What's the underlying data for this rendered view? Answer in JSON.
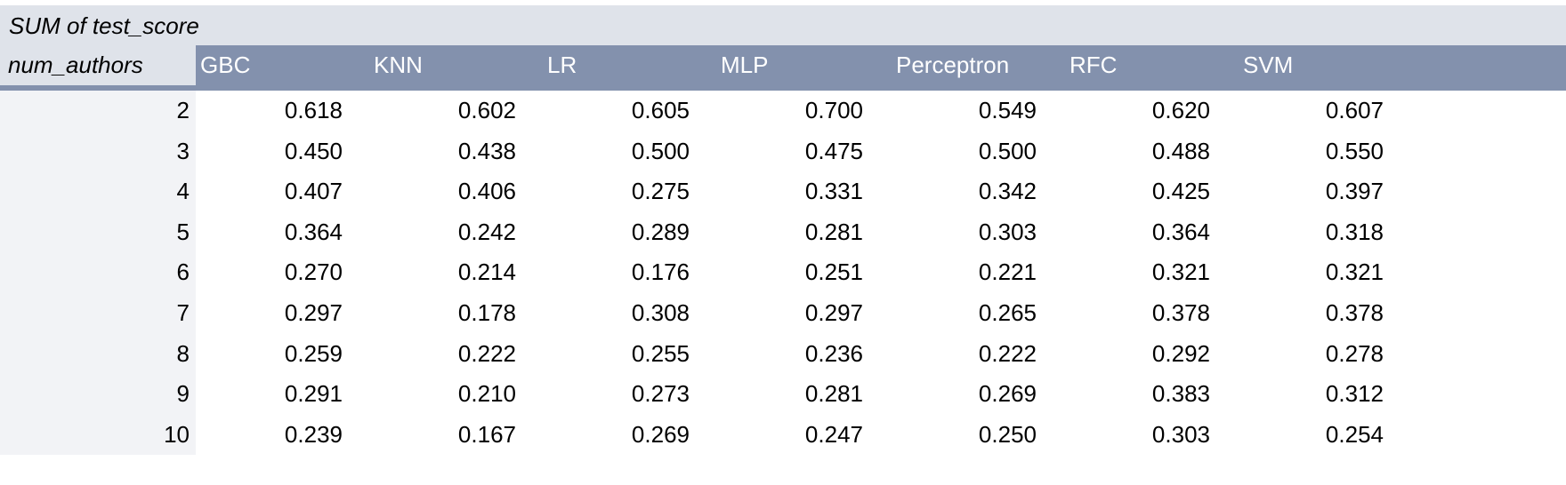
{
  "table": {
    "title": "SUM of test_score",
    "row_field": "num_authors",
    "columns": [
      "GBC",
      "KNN",
      "LR",
      "MLP",
      "Perceptron",
      "RFC",
      "SVM"
    ],
    "rows": [
      {
        "key": "2",
        "values": [
          "0.618",
          "0.602",
          "0.605",
          "0.700",
          "0.549",
          "0.620",
          "0.607"
        ]
      },
      {
        "key": "3",
        "values": [
          "0.450",
          "0.438",
          "0.500",
          "0.475",
          "0.500",
          "0.488",
          "0.550"
        ]
      },
      {
        "key": "4",
        "values": [
          "0.407",
          "0.406",
          "0.275",
          "0.331",
          "0.342",
          "0.425",
          "0.397"
        ]
      },
      {
        "key": "5",
        "values": [
          "0.364",
          "0.242",
          "0.289",
          "0.281",
          "0.303",
          "0.364",
          "0.318"
        ]
      },
      {
        "key": "6",
        "values": [
          "0.270",
          "0.214",
          "0.176",
          "0.251",
          "0.221",
          "0.321",
          "0.321"
        ]
      },
      {
        "key": "7",
        "values": [
          "0.297",
          "0.178",
          "0.308",
          "0.297",
          "0.265",
          "0.378",
          "0.378"
        ]
      },
      {
        "key": "8",
        "values": [
          "0.259",
          "0.222",
          "0.255",
          "0.236",
          "0.222",
          "0.292",
          "0.278"
        ]
      },
      {
        "key": "9",
        "values": [
          "0.291",
          "0.210",
          "0.273",
          "0.281",
          "0.269",
          "0.383",
          "0.312"
        ]
      },
      {
        "key": "10",
        "values": [
          "0.239",
          "0.167",
          "0.269",
          "0.247",
          "0.250",
          "0.303",
          "0.254"
        ]
      }
    ],
    "colors": {
      "title_bg": "#dfe3ea",
      "header_bg": "#8391ad",
      "header_text": "#ffffff",
      "row_key_bg": "#f2f3f6"
    }
  }
}
